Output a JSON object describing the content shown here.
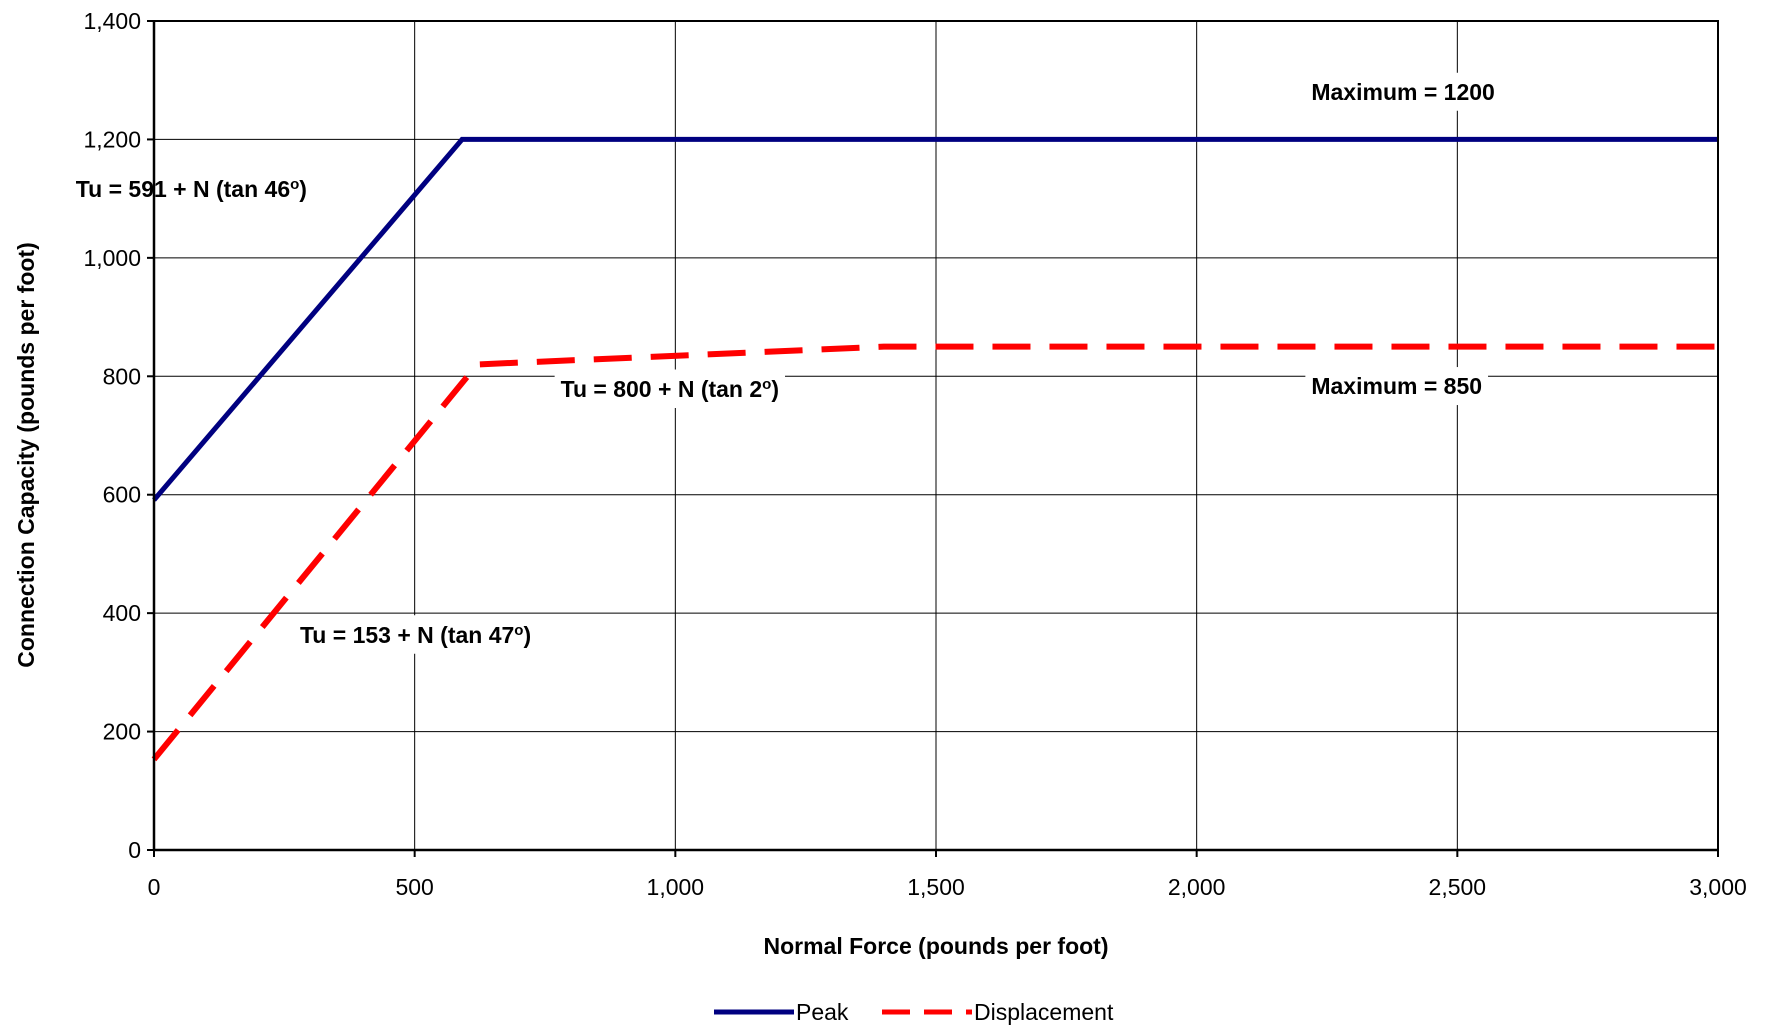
{
  "chart_data": {
    "type": "line",
    "title": "",
    "xlabel": "Normal Force (pounds per foot)",
    "ylabel": "Connection Capacity (pounds per foot)",
    "xlim": [
      0,
      3000
    ],
    "ylim": [
      0,
      1400
    ],
    "x_ticks": [
      0,
      500,
      1000,
      1500,
      2000,
      2500,
      3000
    ],
    "x_tick_labels": [
      "0",
      "500",
      "1,000",
      "1,500",
      "2,000",
      "2,500",
      "3,000"
    ],
    "y_ticks": [
      0,
      200,
      400,
      600,
      800,
      1000,
      1200,
      1400
    ],
    "y_tick_labels": [
      "0",
      "200",
      "400",
      "600",
      "800",
      "1,000",
      "1,200",
      "1,400"
    ],
    "grid": true,
    "legend_position": "bottom-center",
    "series": [
      {
        "name": "Peak",
        "color": "#000080",
        "style": "solid",
        "x": [
          0,
          591,
          3000
        ],
        "y": [
          591,
          1200,
          1200
        ]
      },
      {
        "name": "Displacement",
        "color": "#ff0000",
        "style": "dashed",
        "x": [
          0,
          620,
          1400,
          3000
        ],
        "y": [
          153,
          820,
          850,
          850
        ]
      }
    ],
    "annotations": [
      {
        "id": "peak_eq",
        "text": "Tu = 591 + N (tan 46",
        "superscript": "o",
        "suffix": ")",
        "x": -150,
        "y": 1103
      },
      {
        "id": "peak_max",
        "text": "Maximum = 1200",
        "superscript": "",
        "suffix": "",
        "x": 2220,
        "y": 1267
      },
      {
        "id": "disp_eq2",
        "text": "Tu = 800 + N (tan 2",
        "superscript": "o",
        "suffix": ")",
        "x": 780,
        "y": 765
      },
      {
        "id": "disp_max",
        "text": "Maximum = 850",
        "superscript": "",
        "suffix": "",
        "x": 2220,
        "y": 770
      },
      {
        "id": "disp_eq1",
        "text": "Tu = 153 + N (tan 47",
        "superscript": "o",
        "suffix": ")",
        "x": 280,
        "y": 350
      }
    ]
  }
}
